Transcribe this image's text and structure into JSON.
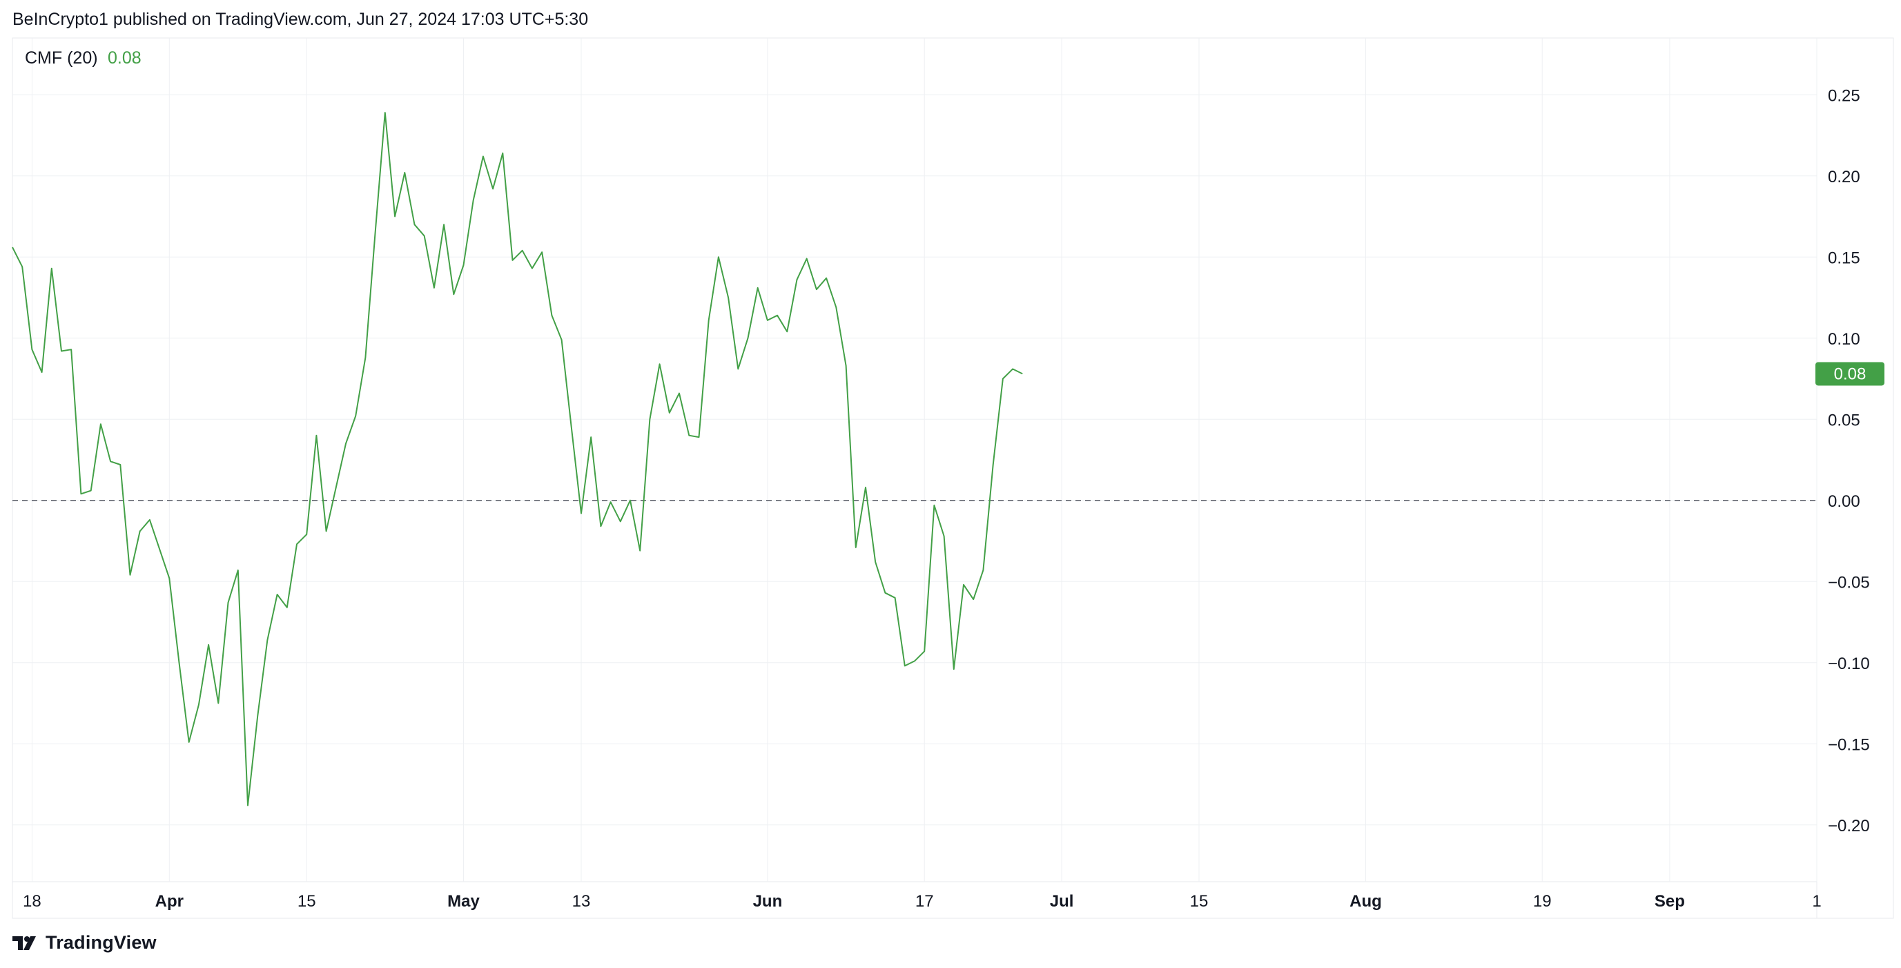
{
  "header": {
    "published": "BeInCrypto1 published on TradingView.com, Jun 27, 2024 17:03 UTC+5:30"
  },
  "footer": {
    "brand": "TradingView"
  },
  "colors": {
    "line": "#43a047",
    "badge": "#43a047",
    "grid": "#eef0f3",
    "text": "#131722",
    "zero": "#5d606b"
  },
  "chart_data": {
    "type": "line",
    "indicator": {
      "name": "CMF (20)",
      "value": "0.08"
    },
    "last_value_badge": "0.08",
    "ylim": [
      -0.235,
      0.285
    ],
    "y_ticks": [
      {
        "v": 0.25,
        "label": "0.25"
      },
      {
        "v": 0.2,
        "label": "0.20"
      },
      {
        "v": 0.15,
        "label": "0.15"
      },
      {
        "v": 0.1,
        "label": "0.10"
      },
      {
        "v": 0.05,
        "label": "0.05"
      },
      {
        "v": 0.0,
        "label": "0.00"
      },
      {
        "v": -0.05,
        "label": "−0.05"
      },
      {
        "v": -0.1,
        "label": "−0.10"
      },
      {
        "v": -0.15,
        "label": "−0.15"
      },
      {
        "v": -0.2,
        "label": "−0.20"
      }
    ],
    "x_ticks": [
      {
        "date": "2024-03-18",
        "label": "18",
        "bold": false
      },
      {
        "date": "2024-04-01",
        "label": "Apr",
        "bold": true
      },
      {
        "date": "2024-04-15",
        "label": "15",
        "bold": false
      },
      {
        "date": "2024-05-01",
        "label": "May",
        "bold": true
      },
      {
        "date": "2024-05-13",
        "label": "13",
        "bold": false
      },
      {
        "date": "2024-06-01",
        "label": "Jun",
        "bold": true
      },
      {
        "date": "2024-06-17",
        "label": "17",
        "bold": false
      },
      {
        "date": "2024-07-01",
        "label": "Jul",
        "bold": true
      },
      {
        "date": "2024-07-15",
        "label": "15",
        "bold": false
      },
      {
        "date": "2024-08-01",
        "label": "Aug",
        "bold": true
      },
      {
        "date": "2024-08-19",
        "label": "19",
        "bold": false
      },
      {
        "date": "2024-09-01",
        "label": "Sep",
        "bold": true
      },
      {
        "date": "2024-09-16",
        "label": "1",
        "bold": false
      }
    ],
    "xlim": [
      "2024-03-16",
      "2024-09-16"
    ],
    "zero_line": 0,
    "series": [
      {
        "values": [
          [
            "2024-03-16",
            0.156
          ],
          [
            "2024-03-17",
            0.144
          ],
          [
            "2024-03-18",
            0.093
          ],
          [
            "2024-03-19",
            0.079
          ],
          [
            "2024-03-20",
            0.143
          ],
          [
            "2024-03-21",
            0.092
          ],
          [
            "2024-03-22",
            0.093
          ],
          [
            "2024-03-23",
            0.004
          ],
          [
            "2024-03-24",
            0.006
          ],
          [
            "2024-03-25",
            0.047
          ],
          [
            "2024-03-26",
            0.024
          ],
          [
            "2024-03-27",
            0.022
          ],
          [
            "2024-03-28",
            -0.046
          ],
          [
            "2024-03-29",
            -0.019
          ],
          [
            "2024-03-30",
            -0.012
          ],
          [
            "2024-03-31",
            -0.03
          ],
          [
            "2024-04-01",
            -0.048
          ],
          [
            "2024-04-02",
            -0.1
          ],
          [
            "2024-04-03",
            -0.149
          ],
          [
            "2024-04-04",
            -0.126
          ],
          [
            "2024-04-05",
            -0.089
          ],
          [
            "2024-04-06",
            -0.125
          ],
          [
            "2024-04-07",
            -0.063
          ],
          [
            "2024-04-08",
            -0.043
          ],
          [
            "2024-04-09",
            -0.188
          ],
          [
            "2024-04-10",
            -0.133
          ],
          [
            "2024-04-11",
            -0.086
          ],
          [
            "2024-04-12",
            -0.058
          ],
          [
            "2024-04-13",
            -0.066
          ],
          [
            "2024-04-14",
            -0.027
          ],
          [
            "2024-04-15",
            -0.021
          ],
          [
            "2024-04-16",
            0.04
          ],
          [
            "2024-04-17",
            -0.019
          ],
          [
            "2024-04-18",
            0.008
          ],
          [
            "2024-04-19",
            0.035
          ],
          [
            "2024-04-20",
            0.052
          ],
          [
            "2024-04-21",
            0.088
          ],
          [
            "2024-04-22",
            0.165
          ],
          [
            "2024-04-23",
            0.239
          ],
          [
            "2024-04-24",
            0.175
          ],
          [
            "2024-04-25",
            0.202
          ],
          [
            "2024-04-26",
            0.17
          ],
          [
            "2024-04-27",
            0.163
          ],
          [
            "2024-04-28",
            0.131
          ],
          [
            "2024-04-29",
            0.17
          ],
          [
            "2024-04-30",
            0.127
          ],
          [
            "2024-05-01",
            0.145
          ],
          [
            "2024-05-02",
            0.185
          ],
          [
            "2024-05-03",
            0.212
          ],
          [
            "2024-05-04",
            0.192
          ],
          [
            "2024-05-05",
            0.214
          ],
          [
            "2024-05-06",
            0.148
          ],
          [
            "2024-05-07",
            0.154
          ],
          [
            "2024-05-08",
            0.143
          ],
          [
            "2024-05-09",
            0.153
          ],
          [
            "2024-05-10",
            0.114
          ],
          [
            "2024-05-11",
            0.099
          ],
          [
            "2024-05-12",
            0.045
          ],
          [
            "2024-05-13",
            -0.008
          ],
          [
            "2024-05-14",
            0.039
          ],
          [
            "2024-05-15",
            -0.016
          ],
          [
            "2024-05-16",
            -0.001
          ],
          [
            "2024-05-17",
            -0.013
          ],
          [
            "2024-05-18",
            0.0
          ],
          [
            "2024-05-19",
            -0.031
          ],
          [
            "2024-05-20",
            0.05
          ],
          [
            "2024-05-21",
            0.084
          ],
          [
            "2024-05-22",
            0.054
          ],
          [
            "2024-05-23",
            0.066
          ],
          [
            "2024-05-24",
            0.04
          ],
          [
            "2024-05-25",
            0.039
          ],
          [
            "2024-05-26",
            0.111
          ],
          [
            "2024-05-27",
            0.15
          ],
          [
            "2024-05-28",
            0.125
          ],
          [
            "2024-05-29",
            0.081
          ],
          [
            "2024-05-30",
            0.1
          ],
          [
            "2024-05-31",
            0.131
          ],
          [
            "2024-06-01",
            0.111
          ],
          [
            "2024-06-02",
            0.114
          ],
          [
            "2024-06-03",
            0.104
          ],
          [
            "2024-06-04",
            0.136
          ],
          [
            "2024-06-05",
            0.149
          ],
          [
            "2024-06-06",
            0.13
          ],
          [
            "2024-06-07",
            0.137
          ],
          [
            "2024-06-08",
            0.119
          ],
          [
            "2024-06-09",
            0.083
          ],
          [
            "2024-06-10",
            -0.029
          ],
          [
            "2024-06-11",
            0.008
          ],
          [
            "2024-06-12",
            -0.038
          ],
          [
            "2024-06-13",
            -0.057
          ],
          [
            "2024-06-14",
            -0.06
          ],
          [
            "2024-06-15",
            -0.102
          ],
          [
            "2024-06-16",
            -0.099
          ],
          [
            "2024-06-17",
            -0.093
          ],
          [
            "2024-06-18",
            -0.003
          ],
          [
            "2024-06-19",
            -0.022
          ],
          [
            "2024-06-20",
            -0.104
          ],
          [
            "2024-06-21",
            -0.052
          ],
          [
            "2024-06-22",
            -0.061
          ],
          [
            "2024-06-23",
            -0.043
          ],
          [
            "2024-06-24",
            0.022
          ],
          [
            "2024-06-25",
            0.075
          ],
          [
            "2024-06-26",
            0.081
          ],
          [
            "2024-06-27",
            0.078
          ]
        ]
      }
    ]
  }
}
